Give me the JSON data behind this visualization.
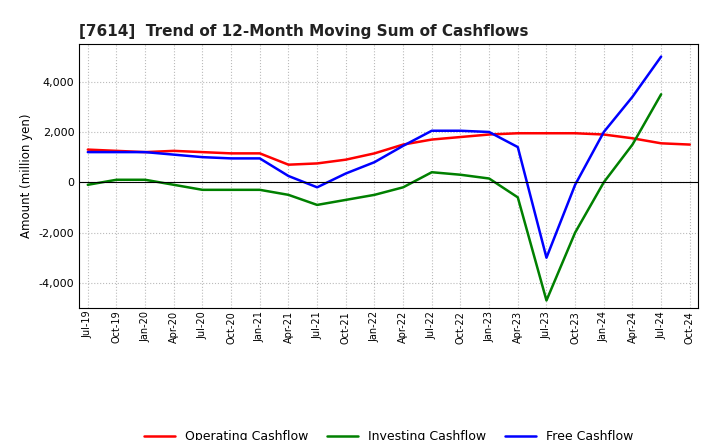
{
  "title": "[7614]  Trend of 12-Month Moving Sum of Cashflows",
  "ylabel": "Amount (million yen)",
  "x_labels": [
    "Jul-19",
    "Oct-19",
    "Jan-20",
    "Apr-20",
    "Jul-20",
    "Oct-20",
    "Jan-21",
    "Apr-21",
    "Jul-21",
    "Oct-21",
    "Jan-22",
    "Apr-22",
    "Jul-22",
    "Oct-22",
    "Jan-23",
    "Apr-23",
    "Jul-23",
    "Oct-23",
    "Jan-24",
    "Apr-24",
    "Jul-24",
    "Oct-24"
  ],
  "operating_cashflow": [
    1300,
    1250,
    1200,
    1250,
    1200,
    1150,
    1150,
    700,
    750,
    900,
    1150,
    1500,
    1700,
    1800,
    1900,
    1950,
    1950,
    1950,
    1900,
    1750,
    1550,
    1500
  ],
  "investing_cashflow": [
    -100,
    100,
    100,
    -100,
    -300,
    -300,
    -300,
    -500,
    -900,
    -700,
    -500,
    -200,
    400,
    300,
    150,
    -600,
    -4700,
    -2000,
    0,
    1500,
    3500,
    null
  ],
  "free_cashflow": [
    1200,
    1200,
    1200,
    1100,
    1000,
    950,
    950,
    250,
    -200,
    350,
    800,
    1450,
    2050,
    2050,
    2000,
    1400,
    -3000,
    -100,
    2000,
    3400,
    5000,
    null
  ],
  "operating_color": "#ff0000",
  "investing_color": "#008000",
  "free_color": "#0000ff",
  "ylim": [
    -5000,
    5500
  ],
  "yticks": [
    -4000,
    -2000,
    0,
    2000,
    4000
  ],
  "background_color": "#ffffff",
  "grid_color": "#aaaaaa",
  "legend_labels": [
    "Operating Cashflow",
    "Investing Cashflow",
    "Free Cashflow"
  ]
}
